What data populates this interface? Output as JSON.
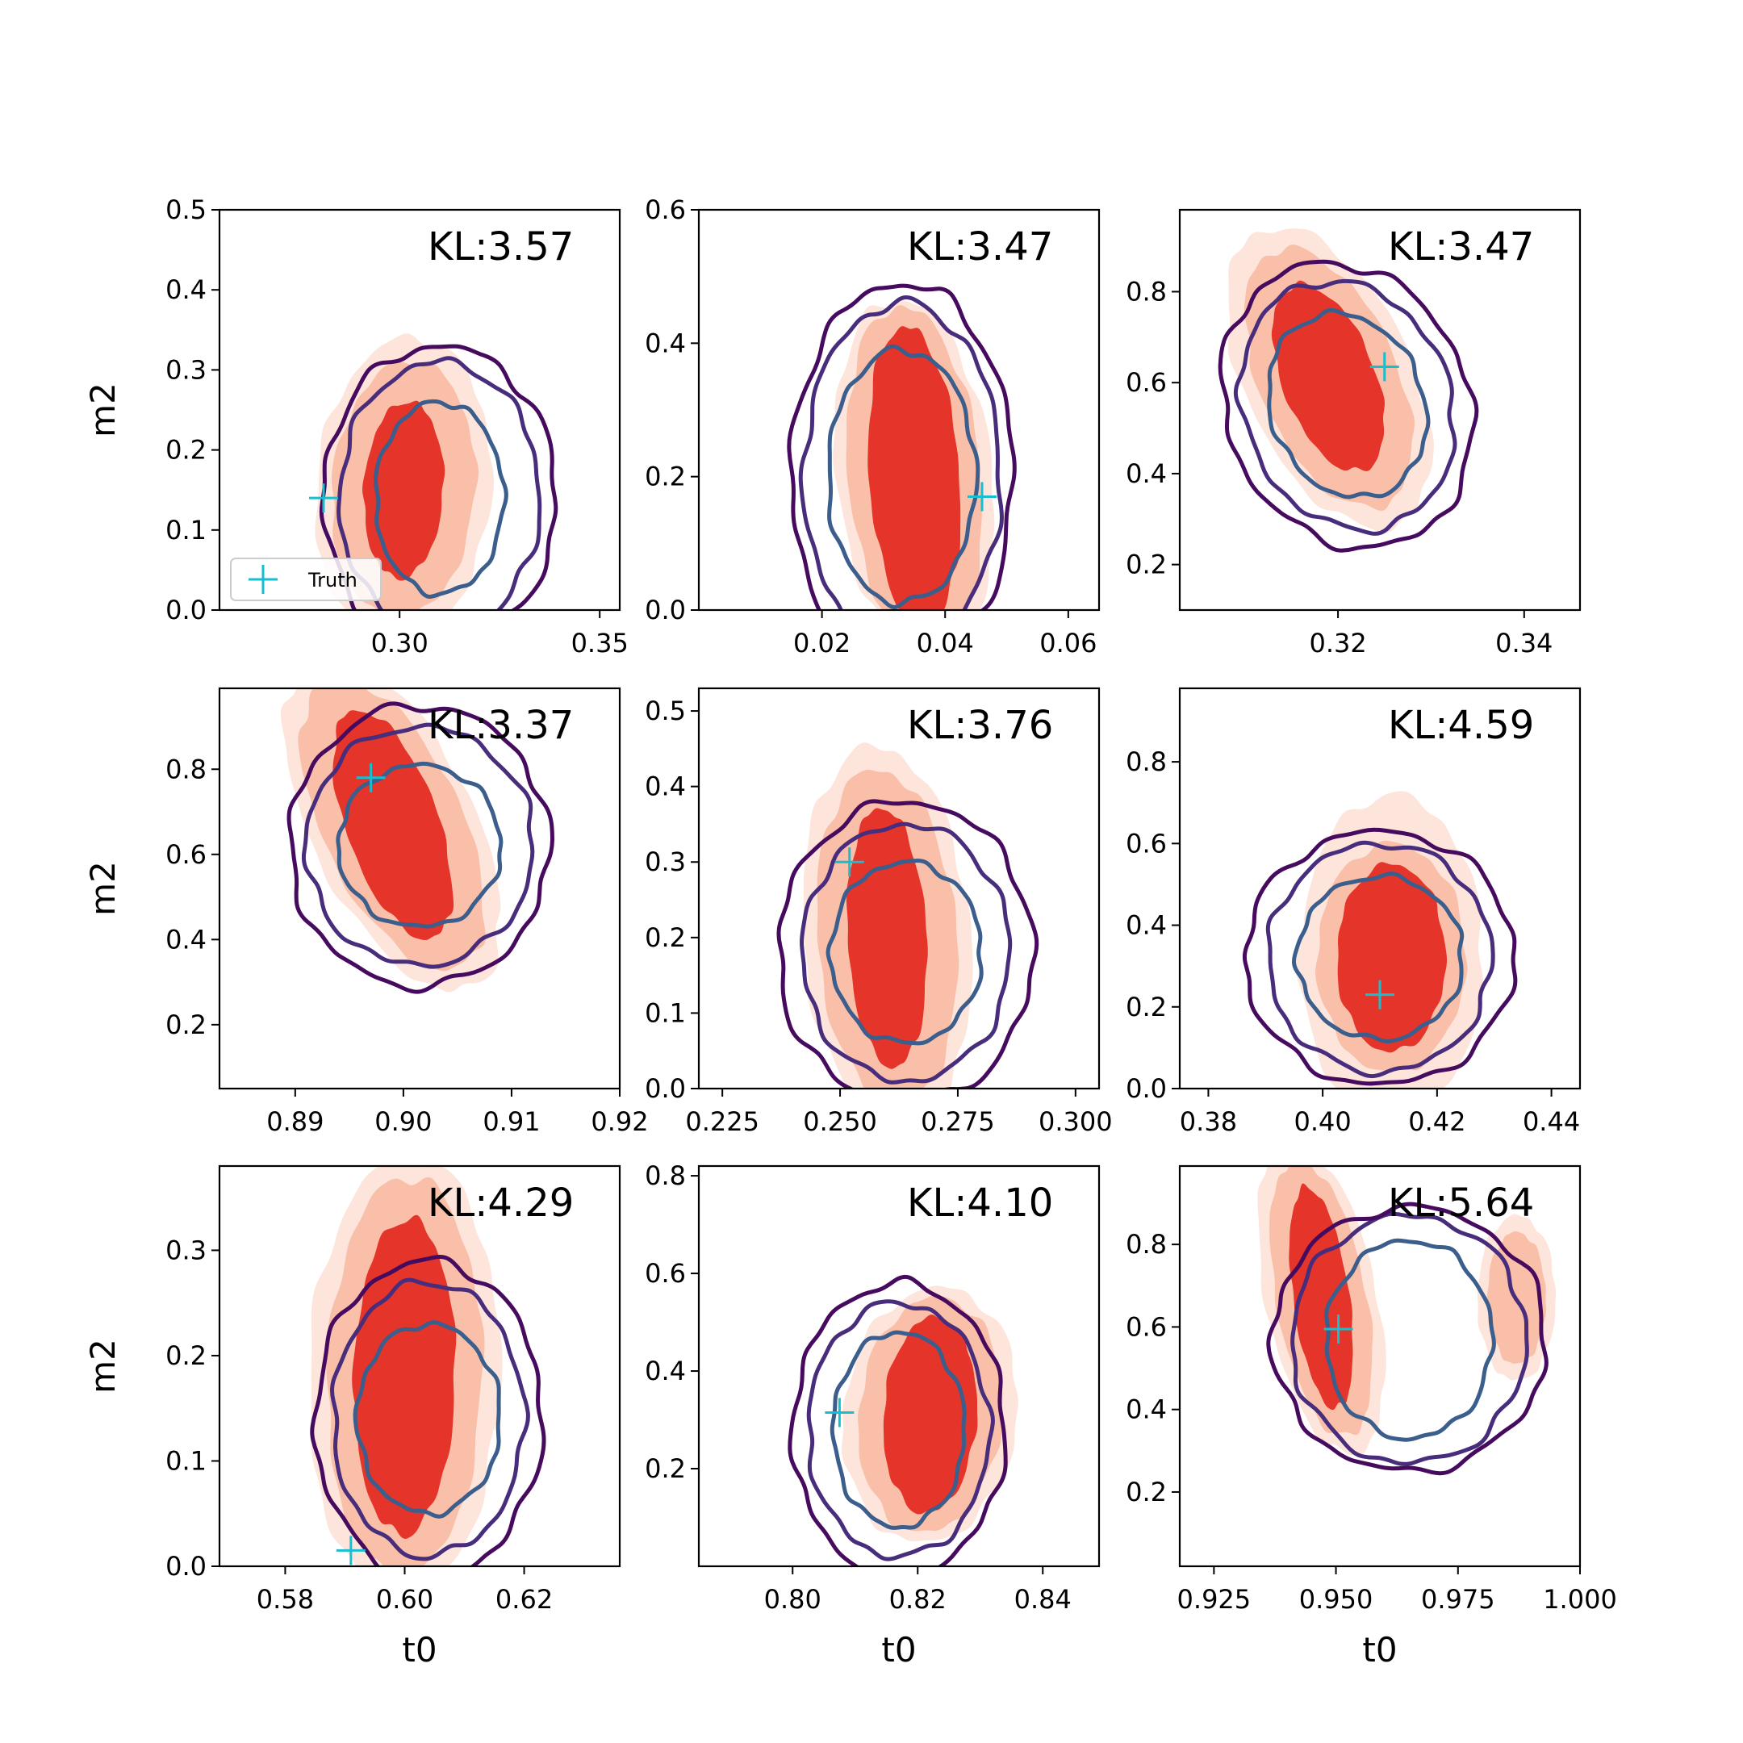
{
  "figure": {
    "title": "",
    "legend": {
      "label": "Truth",
      "placement": "lower-left",
      "panel": 0
    },
    "colors": {
      "kde_inner_fill": "#e5342a",
      "kde_mid_fill": "#f9bfa8",
      "kde_outer_fill": "#fde5dc",
      "contour_outer": "#460b5e",
      "contour_mid": "#472d7b",
      "contour_inner": "#3b5e8c",
      "truth_marker": "#17becf"
    }
  },
  "chart_data": [
    {
      "type": "contour",
      "xlabel": "",
      "ylabel": "m2",
      "xlim": [
        0.255,
        0.355
      ],
      "ylim": [
        0.0,
        0.5
      ],
      "xticks": [
        0.3,
        0.35
      ],
      "xtick_labels": [
        "0.30",
        "0.35"
      ],
      "yticks": [
        0.0,
        0.1,
        0.2,
        0.3,
        0.4,
        0.5
      ],
      "ytick_labels": [
        "0.0",
        "0.1",
        "0.2",
        "0.3",
        "0.4",
        "0.5"
      ],
      "annotation": "KL:3.57",
      "truth": [
        0.281,
        0.14
      ],
      "kde": {
        "center": [
          0.301,
          0.15
        ],
        "radii": [
          [
            0.01,
            0.11
          ],
          [
            0.018,
            0.16
          ],
          [
            0.022,
            0.19
          ]
        ],
        "tilt": 0.1
      },
      "contours": {
        "center": [
          0.31,
          0.14
        ],
        "radii": [
          [
            0.016,
            0.12
          ],
          [
            0.025,
            0.17
          ],
          [
            0.029,
            0.19
          ]
        ],
        "tilt": 0.0
      }
    },
    {
      "type": "contour",
      "xlabel": "",
      "ylabel": "",
      "xlim": [
        0.0,
        0.065
      ],
      "ylim": [
        0.0,
        0.6
      ],
      "xticks": [
        0.02,
        0.04,
        0.06
      ],
      "xtick_labels": [
        "0.02",
        "0.04",
        "0.06"
      ],
      "yticks": [
        0.0,
        0.2,
        0.4,
        0.6
      ],
      "ytick_labels": [
        "0.0",
        "0.2",
        "0.4",
        "0.6"
      ],
      "annotation": "KL:3.47",
      "truth": [
        0.046,
        0.17
      ],
      "kde": {
        "center": [
          0.035,
          0.2
        ],
        "radii": [
          [
            0.0075,
            0.22
          ],
          [
            0.011,
            0.25
          ],
          [
            0.013,
            0.26
          ]
        ],
        "tilt": -0.2
      },
      "contours": {
        "center": [
          0.033,
          0.2
        ],
        "radii": [
          [
            0.012,
            0.19
          ],
          [
            0.016,
            0.26
          ],
          [
            0.018,
            0.29
          ]
        ],
        "tilt": 0.0
      }
    },
    {
      "type": "contour",
      "xlabel": "",
      "ylabel": "",
      "xlim": [
        0.303,
        0.346
      ],
      "ylim": [
        0.1,
        0.98
      ],
      "xticks": [
        0.32,
        0.34
      ],
      "xtick_labels": [
        "0.32",
        "0.34"
      ],
      "yticks": [
        0.2,
        0.4,
        0.6,
        0.8
      ],
      "ytick_labels": [
        "0.2",
        "0.4",
        "0.6",
        "0.8"
      ],
      "annotation": "KL:3.47",
      "truth": [
        0.325,
        0.635
      ],
      "kde": {
        "center": [
          0.319,
          0.61
        ],
        "radii": [
          [
            0.006,
            0.18
          ],
          [
            0.009,
            0.25
          ],
          [
            0.011,
            0.29
          ]
        ],
        "tilt": -0.55
      },
      "contours": {
        "center": [
          0.321,
          0.55
        ],
        "radii": [
          [
            0.0085,
            0.2
          ],
          [
            0.0115,
            0.27
          ],
          [
            0.0135,
            0.31
          ]
        ],
        "tilt": -0.15
      }
    },
    {
      "type": "contour",
      "xlabel": "",
      "ylabel": "m2",
      "xlim": [
        0.883,
        0.92
      ],
      "ylim": [
        0.05,
        0.99
      ],
      "xticks": [
        0.89,
        0.9,
        0.91,
        0.92
      ],
      "xtick_labels": [
        "0.89",
        "0.90",
        "0.91",
        "0.92"
      ],
      "yticks": [
        0.2,
        0.4,
        0.6,
        0.8
      ],
      "ytick_labels": [
        "0.2",
        "0.4",
        "0.6",
        "0.8"
      ],
      "annotation": "KL:3.37",
      "truth": [
        0.897,
        0.78
      ],
      "kde": {
        "center": [
          0.899,
          0.67
        ],
        "radii": [
          [
            0.0055,
            0.22
          ],
          [
            0.0085,
            0.28
          ],
          [
            0.01,
            0.32
          ]
        ],
        "tilt": -0.7
      },
      "contours": {
        "center": [
          0.9015,
          0.62
        ],
        "radii": [
          [
            0.0075,
            0.19
          ],
          [
            0.0105,
            0.28
          ],
          [
            0.012,
            0.33
          ]
        ],
        "tilt": 0.0
      }
    },
    {
      "type": "contour",
      "xlabel": "",
      "ylabel": "",
      "xlim": [
        0.22,
        0.305
      ],
      "ylim": [
        0.0,
        0.53
      ],
      "xticks": [
        0.225,
        0.25,
        0.275,
        0.3
      ],
      "xtick_labels": [
        "0.225",
        "0.250",
        "0.275",
        "0.300"
      ],
      "yticks": [
        0.0,
        0.1,
        0.2,
        0.3,
        0.4,
        0.5
      ],
      "ytick_labels": [
        "0.0",
        "0.1",
        "0.2",
        "0.3",
        "0.4",
        "0.5"
      ],
      "annotation": "KL:3.76",
      "truth": [
        0.252,
        0.3
      ],
      "kde": {
        "center": [
          0.26,
          0.2
        ],
        "radii": [
          [
            0.0085,
            0.17
          ],
          [
            0.015,
            0.22
          ],
          [
            0.018,
            0.25
          ]
        ],
        "tilt": -0.15
      },
      "contours": {
        "center": [
          0.264,
          0.18
        ],
        "radii": [
          [
            0.016,
            0.12
          ],
          [
            0.022,
            0.17
          ],
          [
            0.027,
            0.2
          ]
        ],
        "tilt": 0.0
      }
    },
    {
      "type": "contour",
      "xlabel": "",
      "ylabel": "",
      "xlim": [
        0.375,
        0.445
      ],
      "ylim": [
        0.0,
        0.98
      ],
      "xticks": [
        0.38,
        0.4,
        0.42,
        0.44
      ],
      "xtick_labels": [
        "0.38",
        "0.40",
        "0.42",
        "0.44"
      ],
      "yticks": [
        0.0,
        0.2,
        0.4,
        0.6,
        0.8
      ],
      "ytick_labels": [
        "0.0",
        "0.2",
        "0.4",
        "0.6",
        "0.8"
      ],
      "annotation": "KL:4.59",
      "truth": [
        0.41,
        0.23
      ],
      "kde": {
        "center": [
          0.412,
          0.32
        ],
        "radii": [
          [
            0.0095,
            0.23
          ],
          [
            0.013,
            0.28
          ],
          [
            0.016,
            0.4
          ]
        ],
        "tilt": 0.0
      },
      "contours": {
        "center": [
          0.41,
          0.32
        ],
        "radii": [
          [
            0.0145,
            0.2
          ],
          [
            0.0195,
            0.28
          ],
          [
            0.0235,
            0.31
          ]
        ],
        "tilt": 0.0
      }
    },
    {
      "type": "contour",
      "xlabel": "t0",
      "ylabel": "m2",
      "xlim": [
        0.569,
        0.636
      ],
      "ylim": [
        0.0,
        0.38
      ],
      "xticks": [
        0.58,
        0.6,
        0.62
      ],
      "xtick_labels": [
        "0.58",
        "0.60",
        "0.62"
      ],
      "yticks": [
        0.0,
        0.1,
        0.2,
        0.3
      ],
      "ytick_labels": [
        "0.0",
        "0.1",
        "0.2",
        "0.3"
      ],
      "annotation": "KL:4.29",
      "truth": [
        0.591,
        0.015
      ],
      "kde": {
        "center": [
          0.6,
          0.18
        ],
        "radii": [
          [
            0.0085,
            0.15
          ],
          [
            0.013,
            0.19
          ],
          [
            0.016,
            0.21
          ]
        ],
        "tilt": 0.05
      },
      "contours": {
        "center": [
          0.604,
          0.14
        ],
        "radii": [
          [
            0.012,
            0.09
          ],
          [
            0.016,
            0.13
          ],
          [
            0.019,
            0.15
          ]
        ],
        "tilt": 0.0
      }
    },
    {
      "type": "contour",
      "xlabel": "t0",
      "ylabel": "",
      "xlim": [
        0.785,
        0.849
      ],
      "ylim": [
        0.0,
        0.82
      ],
      "xticks": [
        0.8,
        0.82,
        0.84
      ],
      "xtick_labels": [
        "0.80",
        "0.82",
        "0.84"
      ],
      "yticks": [
        0.2,
        0.4,
        0.6,
        0.8
      ],
      "ytick_labels": [
        "0.2",
        "0.4",
        "0.6",
        "0.8"
      ],
      "annotation": "KL:4.10",
      "truth": [
        0.8075,
        0.315
      ],
      "kde": {
        "center": [
          0.822,
          0.31
        ],
        "radii": [
          [
            0.0075,
            0.2
          ],
          [
            0.0115,
            0.24
          ],
          [
            0.014,
            0.26
          ]
        ],
        "tilt": 0.1
      },
      "contours": {
        "center": [
          0.817,
          0.28
        ],
        "radii": [
          [
            0.0105,
            0.2
          ],
          [
            0.0145,
            0.26
          ],
          [
            0.017,
            0.3
          ]
        ],
        "tilt": 0.0
      }
    },
    {
      "type": "contour",
      "xlabel": "t0",
      "ylabel": "",
      "xlim": [
        0.918,
        1.0
      ],
      "ylim": [
        0.02,
        0.99
      ],
      "xticks": [
        0.925,
        0.95,
        0.975,
        1.0
      ],
      "xtick_labels": [
        "0.925",
        "0.950",
        "0.975",
        "1.000"
      ],
      "yticks": [
        0.2,
        0.4,
        0.6,
        0.8
      ],
      "ytick_labels": [
        "0.2",
        "0.4",
        "0.6",
        "0.8"
      ],
      "annotation": "KL:5.64",
      "truth": [
        0.9505,
        0.595
      ],
      "kde": {
        "center": [
          0.947,
          0.67
        ],
        "radii": [
          [
            0.0065,
            0.24
          ],
          [
            0.0105,
            0.3
          ],
          [
            0.013,
            0.34
          ]
        ],
        "tilt": -0.5
      },
      "contours": {
        "center": [
          0.965,
          0.57
        ],
        "radii": [
          [
            0.017,
            0.24
          ],
          [
            0.024,
            0.3
          ],
          [
            0.028,
            0.32
          ]
        ],
        "tilt": 0.0
      },
      "kde_extra": {
        "center": [
          0.987,
          0.67
        ],
        "radii": [
          [
            0.006,
            0.16
          ],
          [
            0.008,
            0.2
          ]
        ],
        "tilt": 0.0
      }
    }
  ]
}
